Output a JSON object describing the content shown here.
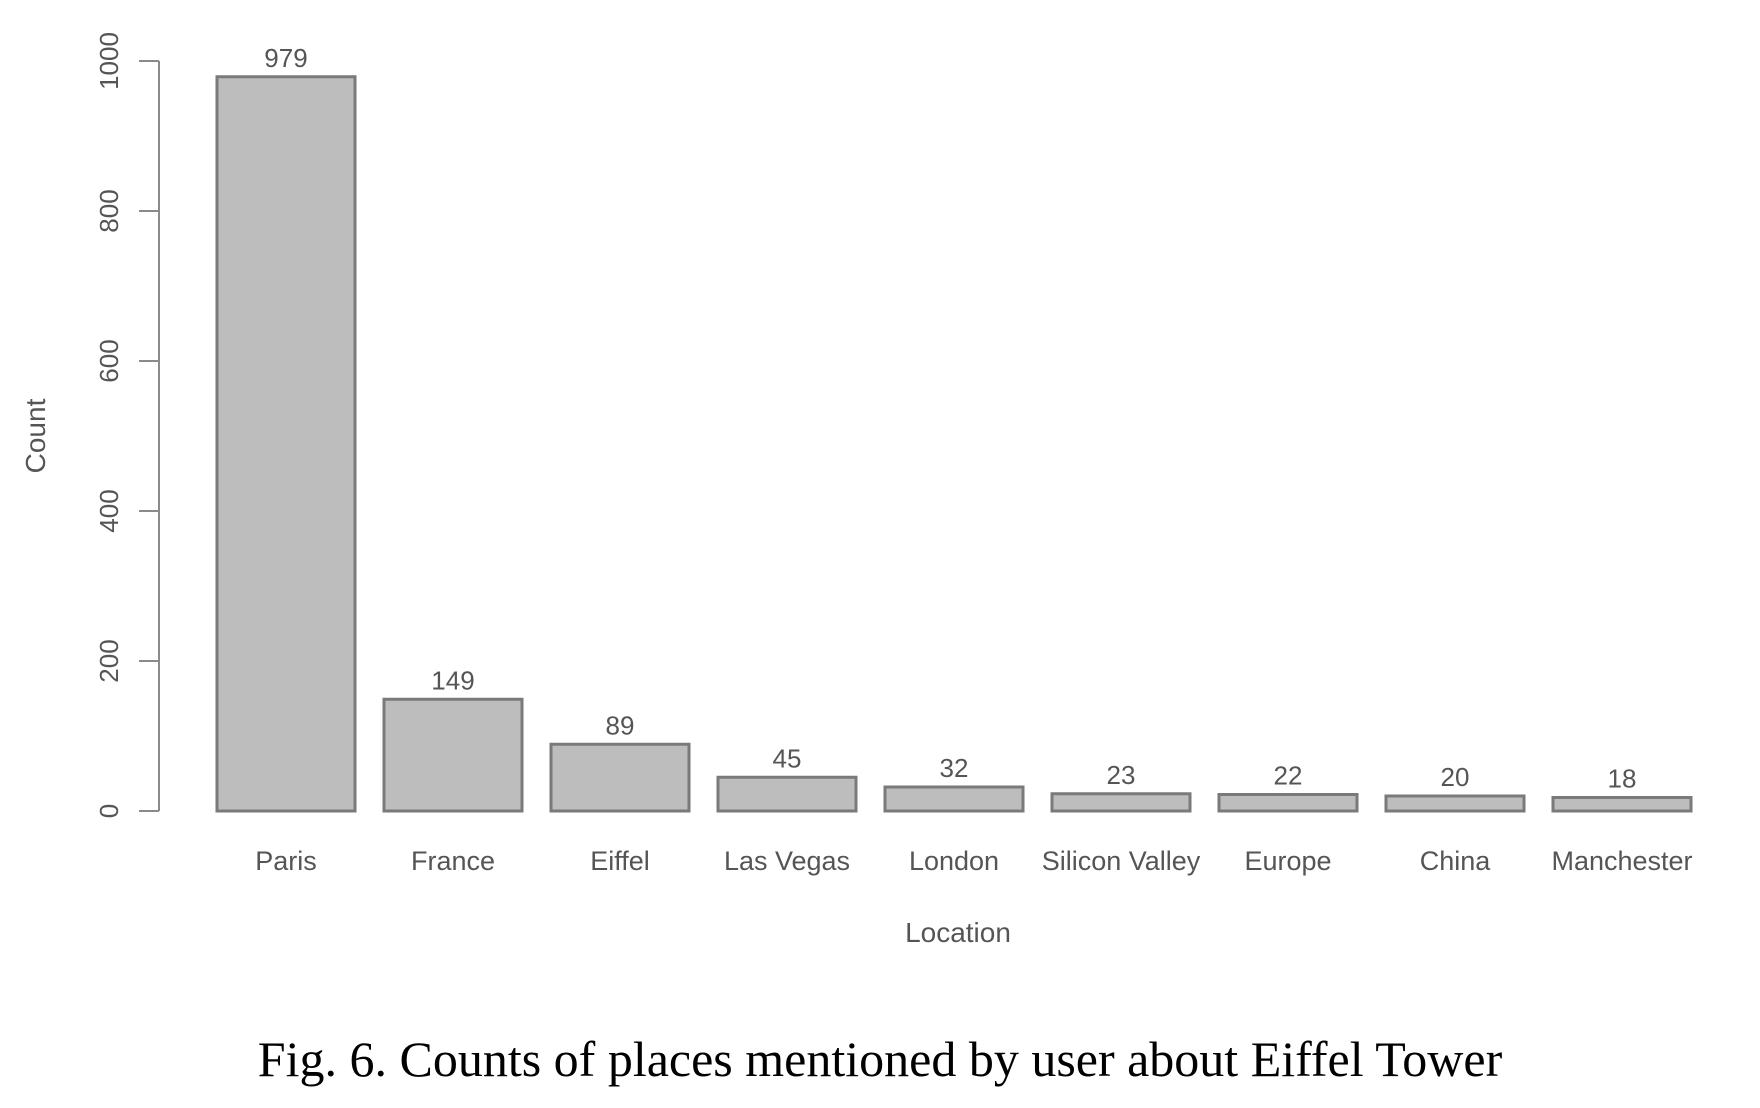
{
  "caption": "Fig. 6.  Counts of places mentioned by user about Eiffel Tower",
  "chart_data": {
    "type": "bar",
    "categories": [
      "Paris",
      "France",
      "Eiffel",
      "Las Vegas",
      "London",
      "Silicon Valley",
      "Europe",
      "China",
      "Manchester"
    ],
    "values": [
      979,
      149,
      89,
      45,
      32,
      23,
      22,
      20,
      18
    ],
    "data_labels": [
      "979",
      "149",
      "89",
      "45",
      "32",
      "23",
      "22",
      "20",
      "18"
    ],
    "xlabel": "Location",
    "ylabel": "Count",
    "ylim": [
      0,
      1000
    ],
    "yticks": [
      "0",
      "200",
      "400",
      "600",
      "800",
      "1000"
    ],
    "grid": false,
    "colors": {
      "bar_fill": "#bdbdbd",
      "bar_stroke": "#7a7a7a",
      "axis": "#8a8a8a",
      "text": "#555555"
    }
  }
}
